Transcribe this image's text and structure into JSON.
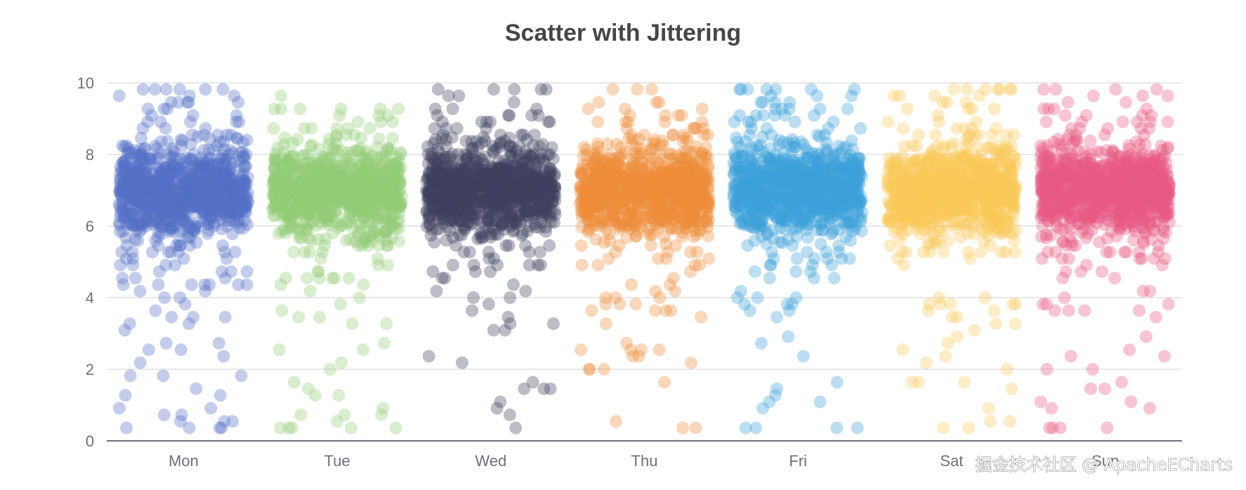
{
  "chart_data": {
    "type": "scatter",
    "title": "Scatter with Jittering",
    "xlabel": "",
    "ylabel": "",
    "categories": [
      "Mon",
      "Tue",
      "Wed",
      "Thu",
      "Fri",
      "Sat",
      "Sun"
    ],
    "ylim": [
      0,
      10
    ],
    "yticks": [
      0,
      2,
      4,
      6,
      8,
      10
    ],
    "grid": true,
    "legend": "none",
    "colors": [
      "#5470c6",
      "#91cc75",
      "#3f3f5f",
      "#ee8b3a",
      "#3ba1db",
      "#fac858",
      "#e85a84"
    ],
    "point_opacity": 0.35,
    "distribution": {
      "points_per_category": 1000,
      "mean": 7,
      "spread": "most points between 6 and 8, thinning toward 0 and 10",
      "jitter": "uniform horizontal jitter within each category band"
    }
  },
  "watermark": "掘金技术社区 @ ApacheECharts"
}
